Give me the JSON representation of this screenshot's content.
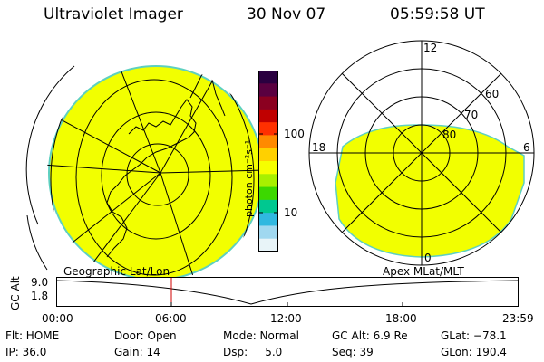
{
  "header": {
    "instrument": "Ultraviolet Imager",
    "date": "30 Nov 07",
    "time": "05:59:58 UT"
  },
  "panels": {
    "left_label": "Geographic Lat/Lon",
    "right_label": "Apex MLat/MLT"
  },
  "polar_plot": {
    "mlt_labels": {
      "top": "12",
      "left": "18",
      "right": "6",
      "bottom": "0"
    },
    "lat_labels": [
      "60",
      "70",
      "80"
    ]
  },
  "colorbar": {
    "unit_label": "photon cm⁻²s⁻¹",
    "ticks": [
      "100",
      "10"
    ],
    "colors": [
      "#2a0040",
      "#5a0040",
      "#8b0020",
      "#c00000",
      "#ff3000",
      "#ff8a00",
      "#ffd000",
      "#f6ff00",
      "#a8f000",
      "#3cd800",
      "#00c890",
      "#30b8e0",
      "#a0d8f0",
      "#e8f4f8"
    ]
  },
  "altitude_strip": {
    "ylabel": "GC Alt",
    "y_ticks": [
      "9.0",
      "1.8"
    ],
    "x_ticks": [
      "00:00",
      "06:00",
      "12:00",
      "18:00",
      "23:59"
    ],
    "marker_time": "06:00"
  },
  "status": {
    "row1": [
      {
        "label": "Flt: HOME"
      },
      {
        "label": "Door: Open"
      },
      {
        "label": "Mode: Normal"
      },
      {
        "label": "GC Alt: 6.9 Re"
      },
      {
        "label": "GLat: −78.1"
      }
    ],
    "row2": [
      {
        "label": "IP: 36.0"
      },
      {
        "label": "Gain: 14"
      },
      {
        "label": "Dsp:     5.0"
      },
      {
        "label": "Seq: 39"
      },
      {
        "label": "GLon: 190.4"
      }
    ]
  }
}
